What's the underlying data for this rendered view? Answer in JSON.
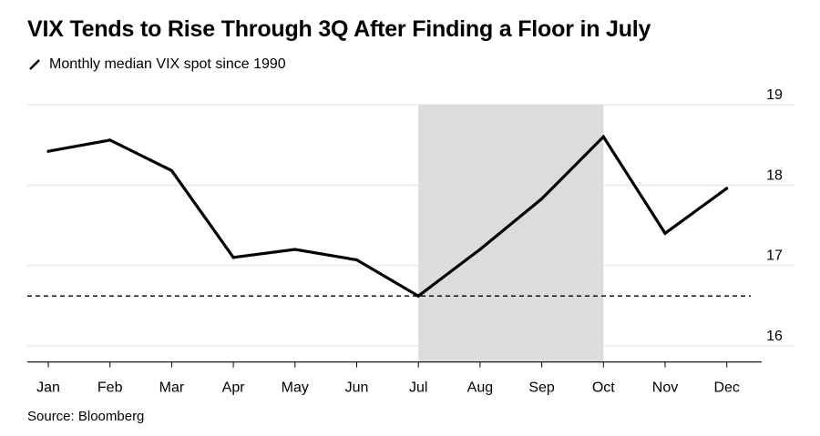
{
  "header": {
    "title": "VIX Tends to Rise Through 3Q After Finding a Floor in July",
    "subtitle": "Monthly median VIX spot since 1990"
  },
  "footer": {
    "source": "Source: Bloomberg"
  },
  "colors": {
    "line": "#000000",
    "highlight_band": "#dcdcdc",
    "gridline": "#e0e0e0",
    "floor_line": "#000000"
  },
  "chart_data": {
    "type": "line",
    "title": "VIX Tends to Rise Through 3Q After Finding a Floor in July",
    "subtitle": "Monthly median VIX spot since 1990",
    "categories": [
      "Jan",
      "Feb",
      "Mar",
      "Apr",
      "May",
      "Jun",
      "Jul",
      "Aug",
      "Sep",
      "Oct",
      "Nov",
      "Dec"
    ],
    "series": [
      {
        "name": "Monthly median VIX spot since 1990",
        "values": [
          18.42,
          18.56,
          18.18,
          17.1,
          17.2,
          17.07,
          16.62,
          17.2,
          17.83,
          18.6,
          17.4,
          17.96
        ]
      }
    ],
    "reference_line": {
      "value": 16.62,
      "style": "dashed"
    },
    "highlight_band": {
      "from": "Jul",
      "to": "Oct"
    },
    "y_axis": {
      "position": "right",
      "ticks": [
        16,
        17,
        18,
        19
      ],
      "ylim": [
        15.8,
        19.2
      ]
    },
    "grid": true,
    "legend": "top-left",
    "source": "Source: Bloomberg"
  }
}
